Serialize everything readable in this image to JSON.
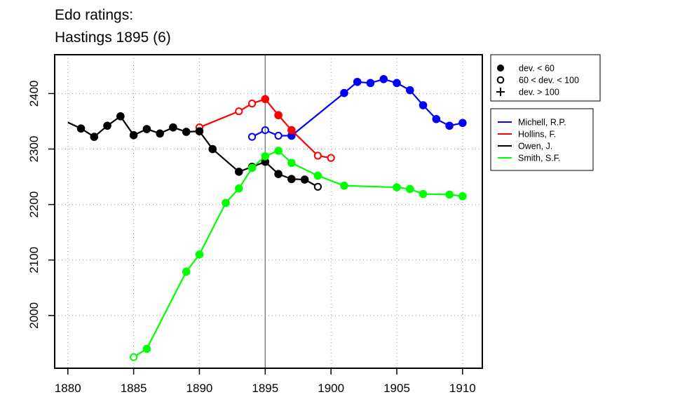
{
  "chart_data": {
    "type": "line",
    "title_lines": [
      "Edo ratings:",
      "Hastings 1895 (6)"
    ],
    "xlabel": "",
    "ylabel": "",
    "xlim": [
      1879,
      1911.5
    ],
    "ylim": [
      1905,
      2470
    ],
    "x_ticks": [
      1880,
      1885,
      1890,
      1895,
      1900,
      1905,
      1910
    ],
    "y_ticks": [
      2000,
      2100,
      2200,
      2300,
      2400
    ],
    "grid": true,
    "reference_line_x": 1895,
    "marker_legend": [
      {
        "symbol": "filled-circle",
        "label": "dev. < 60"
      },
      {
        "symbol": "open-circle",
        "label": "60 < dev. < 100"
      },
      {
        "symbol": "plus",
        "label": "dev. > 100"
      }
    ],
    "series": [
      {
        "name": "Michell, R.P.",
        "color": "#0000ff",
        "points": [
          {
            "x": 1894,
            "y": 2322,
            "m": "open"
          },
          {
            "x": 1895,
            "y": 2334,
            "m": "open"
          },
          {
            "x": 1896,
            "y": 2324,
            "m": "open"
          },
          {
            "x": 1897,
            "y": 2324,
            "m": "filled"
          },
          {
            "x": 1901,
            "y": 2401,
            "m": "filled"
          },
          {
            "x": 1902,
            "y": 2421,
            "m": "filled"
          },
          {
            "x": 1903,
            "y": 2419,
            "m": "filled"
          },
          {
            "x": 1904,
            "y": 2426,
            "m": "filled"
          },
          {
            "x": 1905,
            "y": 2419,
            "m": "filled"
          },
          {
            "x": 1906,
            "y": 2406,
            "m": "filled"
          },
          {
            "x": 1907,
            "y": 2379,
            "m": "filled"
          },
          {
            "x": 1908,
            "y": 2354,
            "m": "filled"
          },
          {
            "x": 1909,
            "y": 2342,
            "m": "filled"
          },
          {
            "x": 1910,
            "y": 2347,
            "m": "filled"
          }
        ]
      },
      {
        "name": "Hollins, F.",
        "color": "#ff0000",
        "points": [
          {
            "x": 1890,
            "y": 2339,
            "m": "open"
          },
          {
            "x": 1893,
            "y": 2368,
            "m": "open"
          },
          {
            "x": 1894,
            "y": 2382,
            "m": "open"
          },
          {
            "x": 1895,
            "y": 2390,
            "m": "filled"
          },
          {
            "x": 1896,
            "y": 2361,
            "m": "filled"
          },
          {
            "x": 1897,
            "y": 2334,
            "m": "filled"
          },
          {
            "x": 1899,
            "y": 2288,
            "m": "open"
          },
          {
            "x": 1900,
            "y": 2284,
            "m": "open"
          }
        ]
      },
      {
        "name": "Owen, J.",
        "color": "#000000",
        "points": [
          {
            "x": 1880,
            "y": 2348,
            "m": "none"
          },
          {
            "x": 1881,
            "y": 2337,
            "m": "filled"
          },
          {
            "x": 1882,
            "y": 2322,
            "m": "filled"
          },
          {
            "x": 1883,
            "y": 2342,
            "m": "filled"
          },
          {
            "x": 1884,
            "y": 2359,
            "m": "filled"
          },
          {
            "x": 1885,
            "y": 2325,
            "m": "filled"
          },
          {
            "x": 1886,
            "y": 2336,
            "m": "filled"
          },
          {
            "x": 1887,
            "y": 2328,
            "m": "filled"
          },
          {
            "x": 1888,
            "y": 2339,
            "m": "filled"
          },
          {
            "x": 1889,
            "y": 2331,
            "m": "filled"
          },
          {
            "x": 1890,
            "y": 2332,
            "m": "filled"
          },
          {
            "x": 1891,
            "y": 2300,
            "m": "filled"
          },
          {
            "x": 1893,
            "y": 2259,
            "m": "filled"
          },
          {
            "x": 1894,
            "y": 2268,
            "m": "filled"
          },
          {
            "x": 1895,
            "y": 2277,
            "m": "filled"
          },
          {
            "x": 1896,
            "y": 2255,
            "m": "filled"
          },
          {
            "x": 1897,
            "y": 2246,
            "m": "filled"
          },
          {
            "x": 1898,
            "y": 2245,
            "m": "filled"
          },
          {
            "x": 1899,
            "y": 2232,
            "m": "open"
          }
        ]
      },
      {
        "name": "Smith, S.F.",
        "color": "#00ff00",
        "points": [
          {
            "x": 1885,
            "y": 1925,
            "m": "open"
          },
          {
            "x": 1886,
            "y": 1940,
            "m": "filled"
          },
          {
            "x": 1889,
            "y": 2079,
            "m": "filled"
          },
          {
            "x": 1890,
            "y": 2110,
            "m": "filled"
          },
          {
            "x": 1892,
            "y": 2203,
            "m": "filled"
          },
          {
            "x": 1893,
            "y": 2229,
            "m": "filled"
          },
          {
            "x": 1894,
            "y": 2266,
            "m": "filled"
          },
          {
            "x": 1895,
            "y": 2287,
            "m": "filled"
          },
          {
            "x": 1896,
            "y": 2297,
            "m": "filled"
          },
          {
            "x": 1897,
            "y": 2275,
            "m": "filled"
          },
          {
            "x": 1899,
            "y": 2252,
            "m": "filled"
          },
          {
            "x": 1901,
            "y": 2234,
            "m": "filled"
          },
          {
            "x": 1905,
            "y": 2231,
            "m": "filled"
          },
          {
            "x": 1906,
            "y": 2228,
            "m": "filled"
          },
          {
            "x": 1907,
            "y": 2219,
            "m": "filled"
          },
          {
            "x": 1909,
            "y": 2218,
            "m": "filled"
          },
          {
            "x": 1910,
            "y": 2215,
            "m": "filled"
          }
        ]
      }
    ]
  }
}
